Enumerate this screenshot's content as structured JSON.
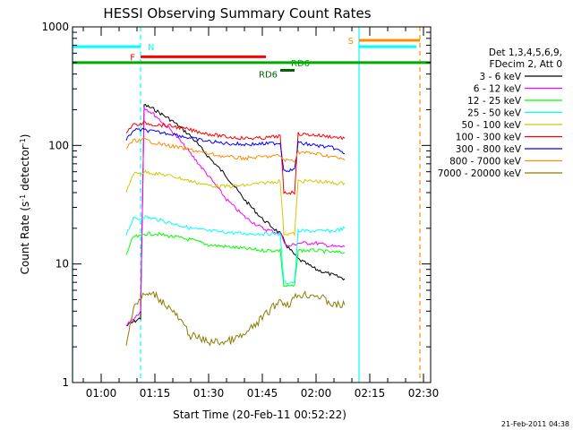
{
  "chart_data": {
    "type": "line",
    "title": "HESSI Observing Summary Count Rates",
    "xlabel": "Start Time (20-Feb-11 00:52:22)",
    "ylabel": "Count Rate (s",
    "ylabel_sup1": "-1",
    "ylabel_mid": " detector",
    "ylabel_sup2": "-1",
    "ylabel_end": ")",
    "y_scale": "log",
    "ylim": [
      1,
      1000
    ],
    "xlim": [
      "00:52",
      "02:32"
    ],
    "x_ticks": [
      "01:00",
      "01:15",
      "01:30",
      "01:45",
      "02:00",
      "02:15",
      "02:30"
    ],
    "y_ticks": [
      "1",
      "10",
      "100",
      "1000"
    ],
    "timestamp": "21-Feb-2011 04:38",
    "legend": {
      "header": [
        "Det 1,3,4,5,6,9,",
        "FDecim 2, Att 0"
      ],
      "placement": "right"
    },
    "series": [
      {
        "name": "3 - 6 keV",
        "color": "#000000",
        "points": [
          [
            "01:07",
            3
          ],
          [
            "01:11",
            3.5
          ],
          [
            "01:12",
            220
          ],
          [
            "01:15",
            200
          ],
          [
            "01:20",
            160
          ],
          [
            "01:25",
            120
          ],
          [
            "01:30",
            80
          ],
          [
            "01:35",
            55
          ],
          [
            "01:40",
            35
          ],
          [
            "01:45",
            24
          ],
          [
            "01:50",
            18
          ],
          [
            "01:52",
            14
          ],
          [
            "01:55",
            11
          ],
          [
            "02:00",
            9
          ],
          [
            "02:05",
            8
          ],
          [
            "02:08",
            7.5
          ]
        ]
      },
      {
        "name": "6 - 12 keV",
        "color": "#ff00ff",
        "points": [
          [
            "01:07",
            3
          ],
          [
            "01:11",
            4
          ],
          [
            "01:12",
            210
          ],
          [
            "01:15",
            180
          ],
          [
            "01:20",
            130
          ],
          [
            "01:25",
            85
          ],
          [
            "01:30",
            55
          ],
          [
            "01:35",
            35
          ],
          [
            "01:40",
            25
          ],
          [
            "01:45",
            20
          ],
          [
            "01:50",
            18
          ],
          [
            "01:52",
            14
          ],
          [
            "01:55",
            15
          ],
          [
            "02:00",
            15
          ],
          [
            "02:05",
            14
          ],
          [
            "02:08",
            14
          ]
        ]
      },
      {
        "name": "12 - 25 keV",
        "color": "#00ff00",
        "points": [
          [
            "01:07",
            12
          ],
          [
            "01:09",
            17
          ],
          [
            "01:11",
            17
          ],
          [
            "01:12",
            18
          ],
          [
            "01:15",
            18
          ],
          [
            "01:20",
            17
          ],
          [
            "01:25",
            16
          ],
          [
            "01:30",
            14.5
          ],
          [
            "01:35",
            14
          ],
          [
            "01:40",
            13.5
          ],
          [
            "01:45",
            13
          ],
          [
            "01:50",
            13
          ],
          [
            "01:51",
            6.5
          ],
          [
            "01:54",
            6.5
          ],
          [
            "01:55",
            13
          ],
          [
            "02:00",
            13
          ],
          [
            "02:05",
            12.5
          ],
          [
            "02:08",
            12.5
          ]
        ]
      },
      {
        "name": "25 - 50 keV",
        "color": "#00ffff",
        "points": [
          [
            "01:07",
            18
          ],
          [
            "01:09",
            24
          ],
          [
            "01:11",
            24
          ],
          [
            "01:12",
            25
          ],
          [
            "01:15",
            24
          ],
          [
            "01:20",
            22
          ],
          [
            "01:25",
            20
          ],
          [
            "01:30",
            19
          ],
          [
            "01:35",
            18.5
          ],
          [
            "01:40",
            18
          ],
          [
            "01:45",
            18
          ],
          [
            "01:50",
            18
          ],
          [
            "01:51",
            7
          ],
          [
            "01:54",
            7
          ],
          [
            "01:55",
            19
          ],
          [
            "02:00",
            19
          ],
          [
            "02:05",
            19
          ],
          [
            "02:08",
            20
          ]
        ]
      },
      {
        "name": "50 - 100 keV",
        "color": "#d4c800",
        "points": [
          [
            "01:07",
            40
          ],
          [
            "01:09",
            58
          ],
          [
            "01:11",
            58
          ],
          [
            "01:12",
            60
          ],
          [
            "01:15",
            58
          ],
          [
            "01:20",
            55
          ],
          [
            "01:25",
            50
          ],
          [
            "01:30",
            46
          ],
          [
            "01:35",
            45
          ],
          [
            "01:40",
            46
          ],
          [
            "01:45",
            48
          ],
          [
            "01:50",
            50
          ],
          [
            "01:51",
            18
          ],
          [
            "01:54",
            18
          ],
          [
            "01:55",
            50
          ],
          [
            "02:00",
            50
          ],
          [
            "02:05",
            48
          ],
          [
            "02:08",
            48
          ]
        ]
      },
      {
        "name": "100 - 300 keV",
        "color": "#ff0000",
        "points": [
          [
            "01:07",
            130
          ],
          [
            "01:09",
            150
          ],
          [
            "01:11",
            150
          ],
          [
            "01:12",
            155
          ],
          [
            "01:15",
            150
          ],
          [
            "01:20",
            145
          ],
          [
            "01:25",
            135
          ],
          [
            "01:30",
            125
          ],
          [
            "01:35",
            118
          ],
          [
            "01:40",
            115
          ],
          [
            "01:45",
            115
          ],
          [
            "01:50",
            120
          ],
          [
            "01:51",
            40
          ],
          [
            "01:54",
            40
          ],
          [
            "01:55",
            125
          ],
          [
            "02:00",
            122
          ],
          [
            "02:05",
            118
          ],
          [
            "02:08",
            115
          ]
        ]
      },
      {
        "name": "300 - 800 keV",
        "color": "#0000ff",
        "points": [
          [
            "01:07",
            110
          ],
          [
            "01:09",
            135
          ],
          [
            "01:11",
            135
          ],
          [
            "01:12",
            135
          ],
          [
            "01:15",
            130
          ],
          [
            "01:20",
            125
          ],
          [
            "01:25",
            115
          ],
          [
            "01:30",
            108
          ],
          [
            "01:35",
            104
          ],
          [
            "01:40",
            102
          ],
          [
            "01:45",
            103
          ],
          [
            "01:50",
            105
          ],
          [
            "01:51",
            62
          ],
          [
            "01:54",
            62
          ],
          [
            "01:55",
            105
          ],
          [
            "02:00",
            100
          ],
          [
            "02:05",
            95
          ],
          [
            "02:08",
            85
          ]
        ]
      },
      {
        "name": "800 - 7000 keV",
        "color": "#ff8c00",
        "points": [
          [
            "01:07",
            95
          ],
          [
            "01:09",
            110
          ],
          [
            "01:11",
            110
          ],
          [
            "01:12",
            112
          ],
          [
            "01:15",
            105
          ],
          [
            "01:20",
            98
          ],
          [
            "01:25",
            92
          ],
          [
            "01:30",
            85
          ],
          [
            "01:35",
            80
          ],
          [
            "01:40",
            78
          ],
          [
            "01:45",
            80
          ],
          [
            "01:50",
            82
          ],
          [
            "01:51",
            75
          ],
          [
            "01:54",
            75
          ],
          [
            "01:55",
            88
          ],
          [
            "02:00",
            85
          ],
          [
            "02:05",
            80
          ],
          [
            "02:08",
            75
          ]
        ]
      },
      {
        "name": "7000 - 20000 keV",
        "color": "#8b7d00",
        "points": [
          [
            "01:07",
            2
          ],
          [
            "01:09",
            4.5
          ],
          [
            "01:11",
            5
          ],
          [
            "01:12",
            5.5
          ],
          [
            "01:15",
            5.5
          ],
          [
            "01:20",
            4
          ],
          [
            "01:25",
            2.5
          ],
          [
            "01:30",
            2.2
          ],
          [
            "01:35",
            2.2
          ],
          [
            "01:40",
            2.5
          ],
          [
            "01:45",
            3.5
          ],
          [
            "01:50",
            5
          ],
          [
            "01:52",
            4.5
          ],
          [
            "01:55",
            5.5
          ],
          [
            "02:00",
            5.5
          ],
          [
            "02:05",
            4.5
          ],
          [
            "02:08",
            4.5
          ]
        ]
      }
    ],
    "state_bars": [
      {
        "label": "N",
        "color": "#00ffff",
        "segments": [
          [
            "00:52",
            "01:11"
          ],
          [
            "02:12",
            "02:28"
          ]
        ],
        "y": 680
      },
      {
        "label": "F",
        "color": "#ff0000",
        "segments": [
          [
            "01:11",
            "01:46"
          ]
        ],
        "y": 560
      },
      {
        "label": "S",
        "color": "#ff8c00",
        "segments": [
          [
            "02:12",
            "02:29"
          ]
        ],
        "y": 770
      },
      {
        "label": "RD6",
        "color": "#00aa00",
        "segments": [
          [
            "00:52",
            "02:32"
          ]
        ],
        "y": 500,
        "label_at": "01:53"
      },
      {
        "label": "RD6",
        "color": "#006400",
        "segments": [
          [
            "01:50",
            "01:54"
          ]
        ],
        "y": 430,
        "label_at": "01:44"
      }
    ],
    "vlines": [
      {
        "time": "00:52",
        "color": "#00ffff",
        "style": "solid"
      },
      {
        "time": "01:11",
        "color": "#00ffff",
        "style": "dashed"
      },
      {
        "time": "02:12",
        "color": "#00ffff",
        "style": "solid"
      },
      {
        "time": "02:29",
        "color": "#ff8c00",
        "style": "dashed"
      }
    ]
  }
}
